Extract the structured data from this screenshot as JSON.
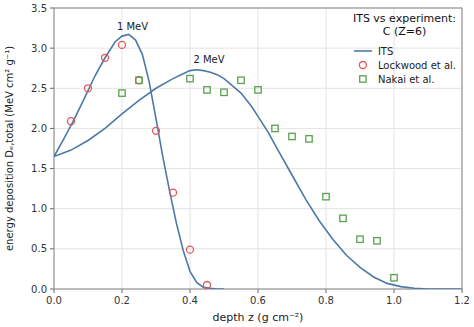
{
  "chart_data": {
    "type": "line",
    "title": "ITS vs experiment:\nC (Z=6)",
    "x_label": "depth z (g cm⁻²)",
    "y_label": "energy deposition Dₑ,total (MeV cm² g⁻¹)",
    "xlim": [
      0.0,
      1.2
    ],
    "ylim": [
      0.0,
      3.5
    ],
    "xticks": [
      {
        "value": 0.0,
        "label": "0.0"
      },
      0.2,
      0.4,
      0.6,
      0.8,
      {
        "value": 1.0,
        "label": "1.0"
      },
      1.2
    ],
    "yticks": [
      {
        "value": 0.0,
        "label": "0.0"
      },
      0.5,
      {
        "value": 1.0,
        "label": "1.0"
      },
      1.5,
      {
        "value": 2.0,
        "label": "2.0"
      },
      2.5,
      {
        "value": 3.0,
        "label": "3.0"
      },
      3.5
    ],
    "grid": true,
    "legend": "upper right",
    "series": [
      {
        "name": "ITS",
        "type": "line",
        "color": "#4e79a7",
        "x": [
          0.0,
          0.03,
          0.06,
          0.09,
          0.12,
          0.15,
          0.18,
          0.2,
          0.22,
          0.24,
          0.26,
          0.28,
          0.3,
          0.32,
          0.34,
          0.36,
          0.38,
          0.4,
          0.42,
          0.44,
          0.46,
          0.48,
          0.5
        ],
        "values": [
          1.65,
          1.88,
          2.12,
          2.38,
          2.65,
          2.88,
          3.08,
          3.15,
          3.17,
          3.1,
          2.92,
          2.58,
          2.12,
          1.65,
          1.22,
          0.82,
          0.48,
          0.22,
          0.08,
          0.02,
          0.01,
          0.0,
          0.0
        ]
      },
      {
        "name": "ITS",
        "type": "line",
        "color": "#4e79a7",
        "x": [
          0.0,
          0.05,
          0.1,
          0.15,
          0.2,
          0.25,
          0.3,
          0.35,
          0.38,
          0.4,
          0.42,
          0.44,
          0.46,
          0.48,
          0.5,
          0.52,
          0.55,
          0.58,
          0.6,
          0.63,
          0.66,
          0.7,
          0.74,
          0.78,
          0.82,
          0.86,
          0.9,
          0.94,
          0.98,
          1.02,
          1.06,
          1.1,
          1.15,
          1.2
        ],
        "values": [
          1.65,
          1.73,
          1.85,
          2.0,
          2.18,
          2.35,
          2.5,
          2.62,
          2.68,
          2.72,
          2.73,
          2.72,
          2.7,
          2.67,
          2.62,
          2.55,
          2.44,
          2.28,
          2.15,
          1.95,
          1.72,
          1.42,
          1.12,
          0.85,
          0.62,
          0.42,
          0.27,
          0.15,
          0.07,
          0.03,
          0.01,
          0.0,
          0.0,
          0.0
        ]
      },
      {
        "name": "Lockwood et al.",
        "type": "scatter",
        "marker": "circle",
        "color": "#e15759",
        "x": [
          0.05,
          0.1,
          0.15,
          0.2,
          0.25,
          0.3,
          0.35,
          0.4,
          0.45
        ],
        "values": [
          2.09,
          2.5,
          2.88,
          3.04,
          2.6,
          1.97,
          1.2,
          0.49,
          0.05
        ]
      },
      {
        "name": "Nakai et al.",
        "type": "scatter",
        "marker": "square",
        "color": "#59a14f",
        "x": [
          0.2,
          0.25,
          0.4,
          0.45,
          0.5,
          0.55,
          0.6,
          0.65,
          0.7,
          0.75,
          0.8,
          0.85,
          0.9,
          0.95,
          1.0
        ],
        "values": [
          2.44,
          2.6,
          2.62,
          2.48,
          2.45,
          2.6,
          2.48,
          2.0,
          1.9,
          1.87,
          1.15,
          0.88,
          0.62,
          0.6,
          0.14
        ]
      }
    ],
    "annotations": [
      {
        "text": "1 MeV",
        "x": 0.185,
        "y": 3.22
      },
      {
        "text": "2 MeV",
        "x": 0.41,
        "y": 2.82
      }
    ]
  }
}
